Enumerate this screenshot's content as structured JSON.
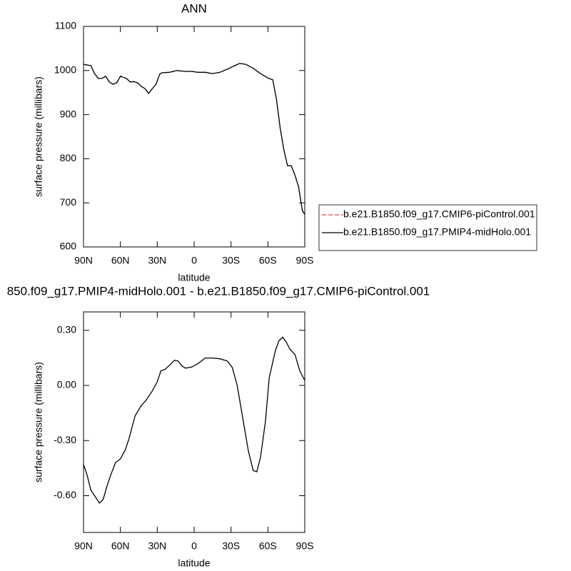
{
  "chart_data": [
    {
      "type": "line",
      "title": "ANN",
      "xlabel": "latitude",
      "ylabel": "surface pressure (millibars)",
      "x": [
        90,
        84,
        81,
        78,
        75,
        72,
        69,
        66,
        63,
        60,
        57,
        55,
        52,
        49,
        46,
        43,
        40,
        37,
        34,
        31,
        28,
        26,
        20,
        14,
        8,
        2,
        -3,
        -9,
        -15,
        -21,
        -27,
        -33,
        -37,
        -42,
        -48,
        -54,
        -60,
        -64,
        -67,
        -70,
        -73,
        -76,
        -79,
        -82,
        -85,
        -88,
        -90
      ],
      "series": [
        {
          "name": "b.e21.B1850.f09_g17.CMIP6-piControl.001",
          "color": "#e04848",
          "dash": true,
          "values": [
            1014,
            1011,
            993,
            982,
            982,
            987,
            974,
            969,
            972,
            987,
            984,
            982,
            974,
            975,
            972,
            964,
            959,
            948,
            959,
            969,
            992,
            995,
            996,
            1000,
            998,
            998,
            996,
            996,
            993,
            996,
            1003,
            1011,
            1016,
            1014,
            1005,
            993,
            983,
            979,
            934,
            869,
            820,
            784,
            784,
            763,
            736,
            682,
            674
          ]
        },
        {
          "name": "b.e21.B1850.f09_g17.PMIP4-midHolo.001",
          "color": "#000000",
          "dash": false,
          "values": [
            1014,
            1011,
            993,
            982,
            982,
            987,
            974,
            969,
            972,
            987,
            984,
            982,
            974,
            975,
            972,
            964,
            959,
            948,
            959,
            969,
            992,
            995,
            996,
            1000,
            998,
            998,
            996,
            996,
            993,
            996,
            1003,
            1011,
            1016,
            1014,
            1005,
            993,
            983,
            979,
            934,
            869,
            820,
            784,
            784,
            763,
            736,
            682,
            674
          ]
        }
      ],
      "xlim": [
        90,
        -90
      ],
      "xticks": [
        {
          "value": 90,
          "label": "90N"
        },
        {
          "value": 60,
          "label": "60N"
        },
        {
          "value": 30,
          "label": "30N"
        },
        0,
        {
          "value": -30,
          "label": "30S"
        },
        {
          "value": -60,
          "label": "60S"
        },
        {
          "value": -90,
          "label": "90S"
        }
      ],
      "ylim": [
        600,
        1100
      ],
      "yticks": [
        600,
        700,
        800,
        900,
        1000,
        1100
      ],
      "legend": "right"
    },
    {
      "type": "line",
      "title": "850.f09_g17.PMIP4-midHolo.001 - b.e21.B1850.f09_g17.CMIP6-piControl.001",
      "xlabel": "latitude",
      "ylabel": "surface pressure (millibars)",
      "x": [
        90,
        87,
        84,
        81,
        77,
        74,
        71,
        68,
        64,
        60,
        56,
        53,
        48,
        43,
        39,
        34,
        30,
        27,
        24,
        20,
        16,
        13,
        10,
        7,
        2,
        -3,
        -9,
        -15,
        -21,
        -27,
        -31,
        -35,
        -39,
        -44,
        -48,
        -51,
        -54,
        -58,
        -61,
        -66,
        -69,
        -72,
        -75,
        -78,
        -82,
        -86,
        -90
      ],
      "series": [
        {
          "color": "#000000",
          "dash": false,
          "values": [
            -0.43,
            -0.49,
            -0.57,
            -0.6,
            -0.64,
            -0.62,
            -0.55,
            -0.49,
            -0.42,
            -0.4,
            -0.35,
            -0.29,
            -0.165,
            -0.11,
            -0.08,
            -0.03,
            0.02,
            0.08,
            0.086,
            0.11,
            0.137,
            0.133,
            0.106,
            0.094,
            0.1,
            0.118,
            0.149,
            0.149,
            0.145,
            0.133,
            0.098,
            0.0,
            -0.157,
            -0.353,
            -0.463,
            -0.47,
            -0.39,
            -0.196,
            0.04,
            0.188,
            0.243,
            0.263,
            0.235,
            0.196,
            0.169,
            0.078,
            0.027
          ]
        }
      ],
      "xlim": [
        90,
        -90
      ],
      "xticks": [
        {
          "value": 90,
          "label": "90N"
        },
        {
          "value": 60,
          "label": "60N"
        },
        {
          "value": 30,
          "label": "30N"
        },
        0,
        {
          "value": -30,
          "label": "30S"
        },
        {
          "value": -60,
          "label": "60S"
        },
        {
          "value": -90,
          "label": "90S"
        }
      ],
      "ylim": [
        -0.8,
        0.4
      ],
      "yticks": [
        {
          "value": -0.6,
          "label": "-0.60"
        },
        {
          "value": -0.3,
          "label": "-0.30"
        },
        {
          "value": 0,
          "label": "0.00"
        },
        {
          "value": 0.3,
          "label": "0.30"
        }
      ]
    }
  ]
}
